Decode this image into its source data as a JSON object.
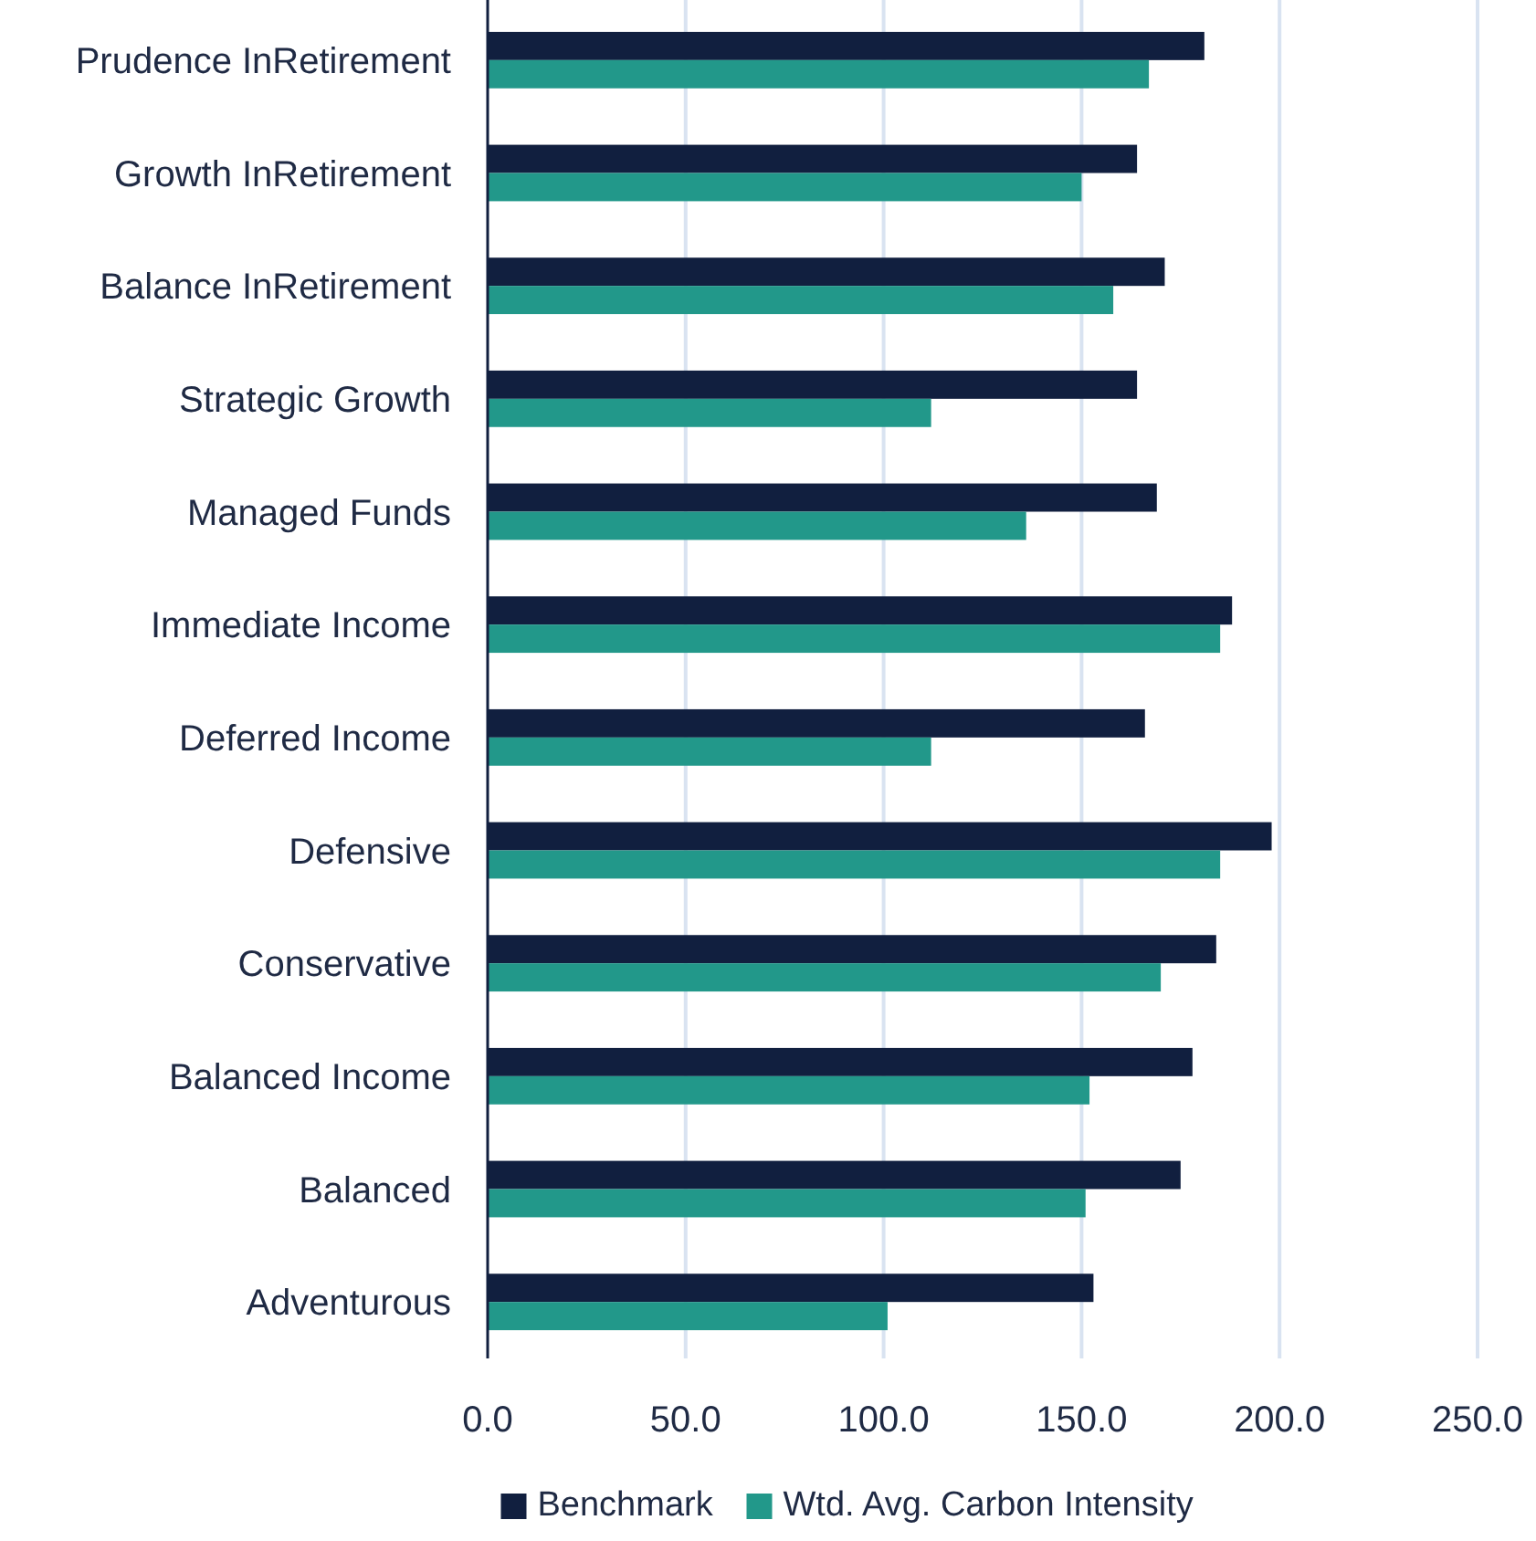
{
  "chart_data": {
    "type": "bar",
    "orientation": "horizontal",
    "categories": [
      "Prudence InRetirement",
      "Growth InRetirement",
      "Balance InRetirement",
      "Strategic Growth",
      "Managed Funds",
      "Immediate Income",
      "Deferred Income",
      "Defensive",
      "Conservative",
      "Balanced Income",
      "Balanced",
      "Adventurous"
    ],
    "series": [
      {
        "name": "Benchmark",
        "color": "#111f3f",
        "values": [
          181,
          164,
          171,
          164,
          169,
          188,
          166,
          198,
          184,
          178,
          175,
          153
        ]
      },
      {
        "name": "Wtd. Avg. Carbon Intensity",
        "color": "#22988a",
        "values": [
          167,
          150,
          158,
          112,
          136,
          185,
          112,
          185,
          170,
          152,
          151,
          101
        ]
      }
    ],
    "xlim": [
      0,
      250
    ],
    "xticks": [
      {
        "value": 0,
        "label": "0.0"
      },
      {
        "value": 50,
        "label": "50.0"
      },
      {
        "value": 100,
        "label": "100.0"
      },
      {
        "value": 150,
        "label": "150.0"
      },
      {
        "value": 200,
        "label": "200.0"
      },
      {
        "value": 250,
        "label": "250.0"
      }
    ],
    "grid": "x",
    "legend": "bottom"
  }
}
